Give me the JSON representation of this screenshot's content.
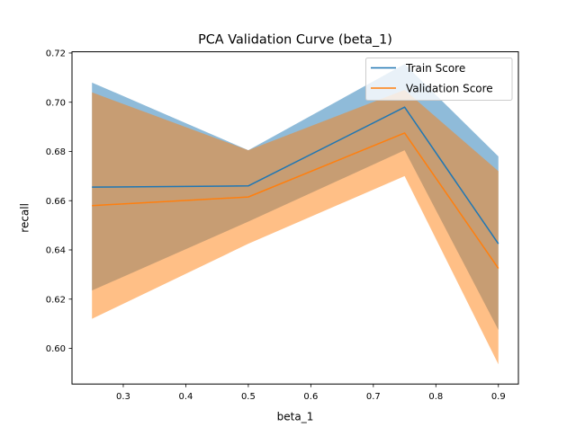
{
  "chart_data": {
    "type": "line",
    "title": "PCA Validation Curve (beta_1)",
    "xlabel": "beta_1",
    "ylabel": "recall",
    "x": [
      0.25,
      0.5,
      0.75,
      0.9
    ],
    "xlim": [
      0.218,
      0.932
    ],
    "ylim": [
      0.5855,
      0.7205
    ],
    "x_ticks": [
      0.3,
      0.4,
      0.5,
      0.6,
      0.7,
      0.8,
      0.9
    ],
    "x_tick_labels": [
      "0.3",
      "0.4",
      "0.5",
      "0.6",
      "0.7",
      "0.8",
      "0.9"
    ],
    "y_ticks": [
      0.6,
      0.62,
      0.64,
      0.66,
      0.68,
      0.7,
      0.72
    ],
    "y_tick_labels": [
      "0.60",
      "0.62",
      "0.64",
      "0.66",
      "0.68",
      "0.70",
      "0.72"
    ],
    "grid": false,
    "legend_position": "top-right",
    "series": [
      {
        "name": "Train Score",
        "color": "#1f77b4",
        "band_color": "#1f77b4",
        "band_opacity": 0.5,
        "values": [
          0.6655,
          0.666,
          0.698,
          0.6425
        ],
        "upper": [
          0.708,
          0.6805,
          0.7155,
          0.678
        ],
        "lower": [
          0.6235,
          0.6515,
          0.6805,
          0.6075
        ]
      },
      {
        "name": "Validation Score",
        "color": "#ff7f0e",
        "band_color": "#ff7f0e",
        "band_opacity": 0.5,
        "values": [
          0.658,
          0.6615,
          0.6875,
          0.6325
        ],
        "upper": [
          0.704,
          0.6805,
          0.705,
          0.672
        ],
        "lower": [
          0.612,
          0.6425,
          0.67,
          0.5935
        ]
      }
    ]
  }
}
